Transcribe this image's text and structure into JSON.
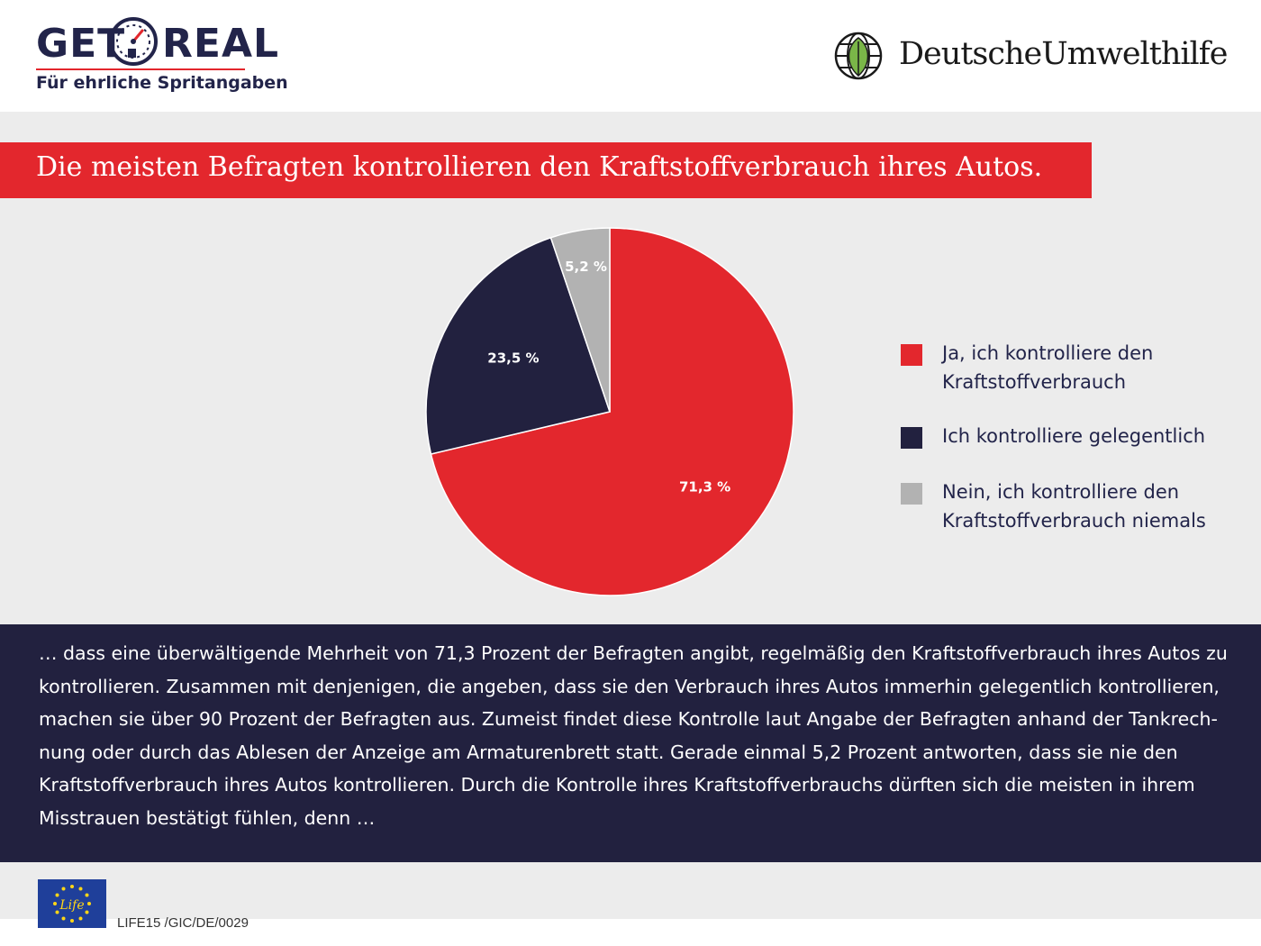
{
  "header": {
    "logo_left": {
      "word1": "GET",
      "word2": "REAL",
      "tagline": "Für ehrliche Spritangaben"
    },
    "logo_right": {
      "name": "DeutscheUmwelthilfe"
    }
  },
  "title": "Die meisten Befragten kontrollieren den Kraftstoffverbrauch ihres Autos.",
  "chart_data": {
    "type": "pie",
    "start_angle_deg": 0,
    "direction": "clockwise",
    "slices": [
      {
        "label": "Ja, ich kontrolliere den Kraftstoffverbrauch",
        "value": 71.3,
        "value_label": "71,3 %",
        "color": "#e3272d"
      },
      {
        "label": "Ich kontrolliere gelegentlich",
        "value": 23.5,
        "value_label": "23,5 %",
        "color": "#22213f"
      },
      {
        "label": "Nein, ich kontrolliere den Kraftstoffverbrauch niemals",
        "value": 5.2,
        "value_label": "5,2 %",
        "color": "#b2b2b2"
      }
    ],
    "legend_position": "right"
  },
  "paragraph": "… dass eine überwältigende Mehrheit von 71,3 Prozent der Befragten angibt, regelmäßig den Kraftstoffverbrauch ihres Autos zu kontrollieren. Zusammen mit denjenigen, die angeben, dass sie den Verbrauch ihres Autos immerhin gelegentlich kontrollieren, machen sie über 90 Prozent der Befragten aus. Zumeist findet diese Kontrolle laut Angabe der Befragten anhand der Tankrech­nung oder durch das Ablesen der Anzeige am Armaturenbrett statt. Gerade einmal 5,2 Prozent antworten, dass sie nie den Kraft­stoffverbrauch ihres Autos kontrollieren. Durch die Kontrolle ihres Kraftstoffverbrauchs dürften sich die meisten in ihrem Miss­trauen bestätigt fühlen, denn …",
  "footer": {
    "eu_logo_text": "Life",
    "reference": "LIFE15 /GIC/DE/0029"
  },
  "colors": {
    "accent_red": "#e3272d",
    "navy": "#22213f",
    "grey": "#b2b2b2",
    "band": "#ececec"
  }
}
